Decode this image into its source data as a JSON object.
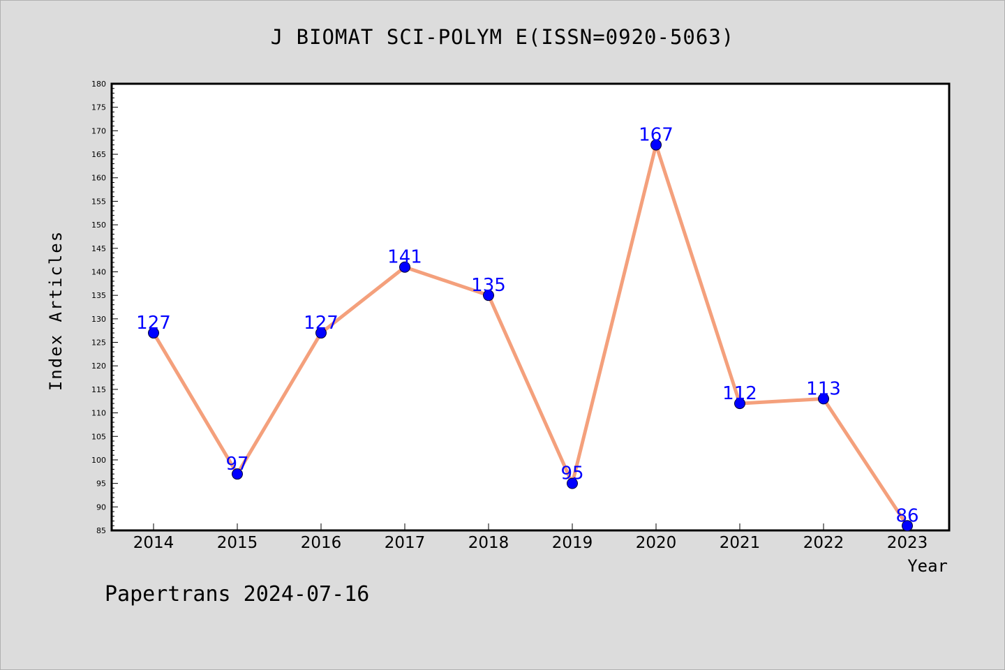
{
  "chart_data": {
    "type": "line",
    "title": "J BIOMAT SCI-POLYM E(ISSN=0920-5063)",
    "xlabel": "Year",
    "ylabel": "Index Articles",
    "categories": [
      "2014",
      "2015",
      "2016",
      "2017",
      "2018",
      "2019",
      "2020",
      "2021",
      "2022",
      "2023"
    ],
    "values": [
      127,
      97,
      127,
      141,
      135,
      95,
      167,
      112,
      113,
      86
    ],
    "ylim": [
      85,
      180
    ],
    "yticks": [
      85,
      90,
      95,
      100,
      105,
      110,
      115,
      120,
      125,
      130,
      135,
      140,
      145,
      150,
      155,
      160,
      165,
      170,
      175,
      180
    ],
    "grid": false,
    "data_labels": true,
    "colors": {
      "line": "#f4a07c",
      "marker": "#0000ff",
      "marker_edge": "#000033",
      "label": "#0000ff"
    }
  },
  "footer": "Papertrans 2024-07-16"
}
